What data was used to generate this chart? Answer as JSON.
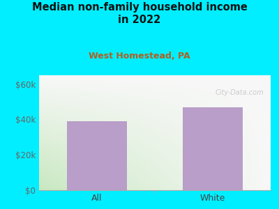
{
  "categories": [
    "All",
    "White"
  ],
  "values": [
    39000,
    47000
  ],
  "bar_color": "#b89ec8",
  "title_line1": "Median non-family household income",
  "title_line2": "in 2022",
  "subtitle": "West Homestead, PA",
  "subtitle_color": "#b06020",
  "title_color": "#111111",
  "background_color": "#00eeff",
  "plot_bg_gradient_topleft": "#c8e8c0",
  "plot_bg_gradient_bottomright": "#f8f8f8",
  "yticks": [
    0,
    20000,
    40000,
    60000
  ],
  "ytick_labels": [
    "$0",
    "$20k",
    "$40k",
    "$60k"
  ],
  "ylim_max": 65000,
  "watermark": "City-Data.com",
  "tick_label_color": "#666666",
  "xtick_color": "#444444",
  "spine_color": "#aaaaaa"
}
